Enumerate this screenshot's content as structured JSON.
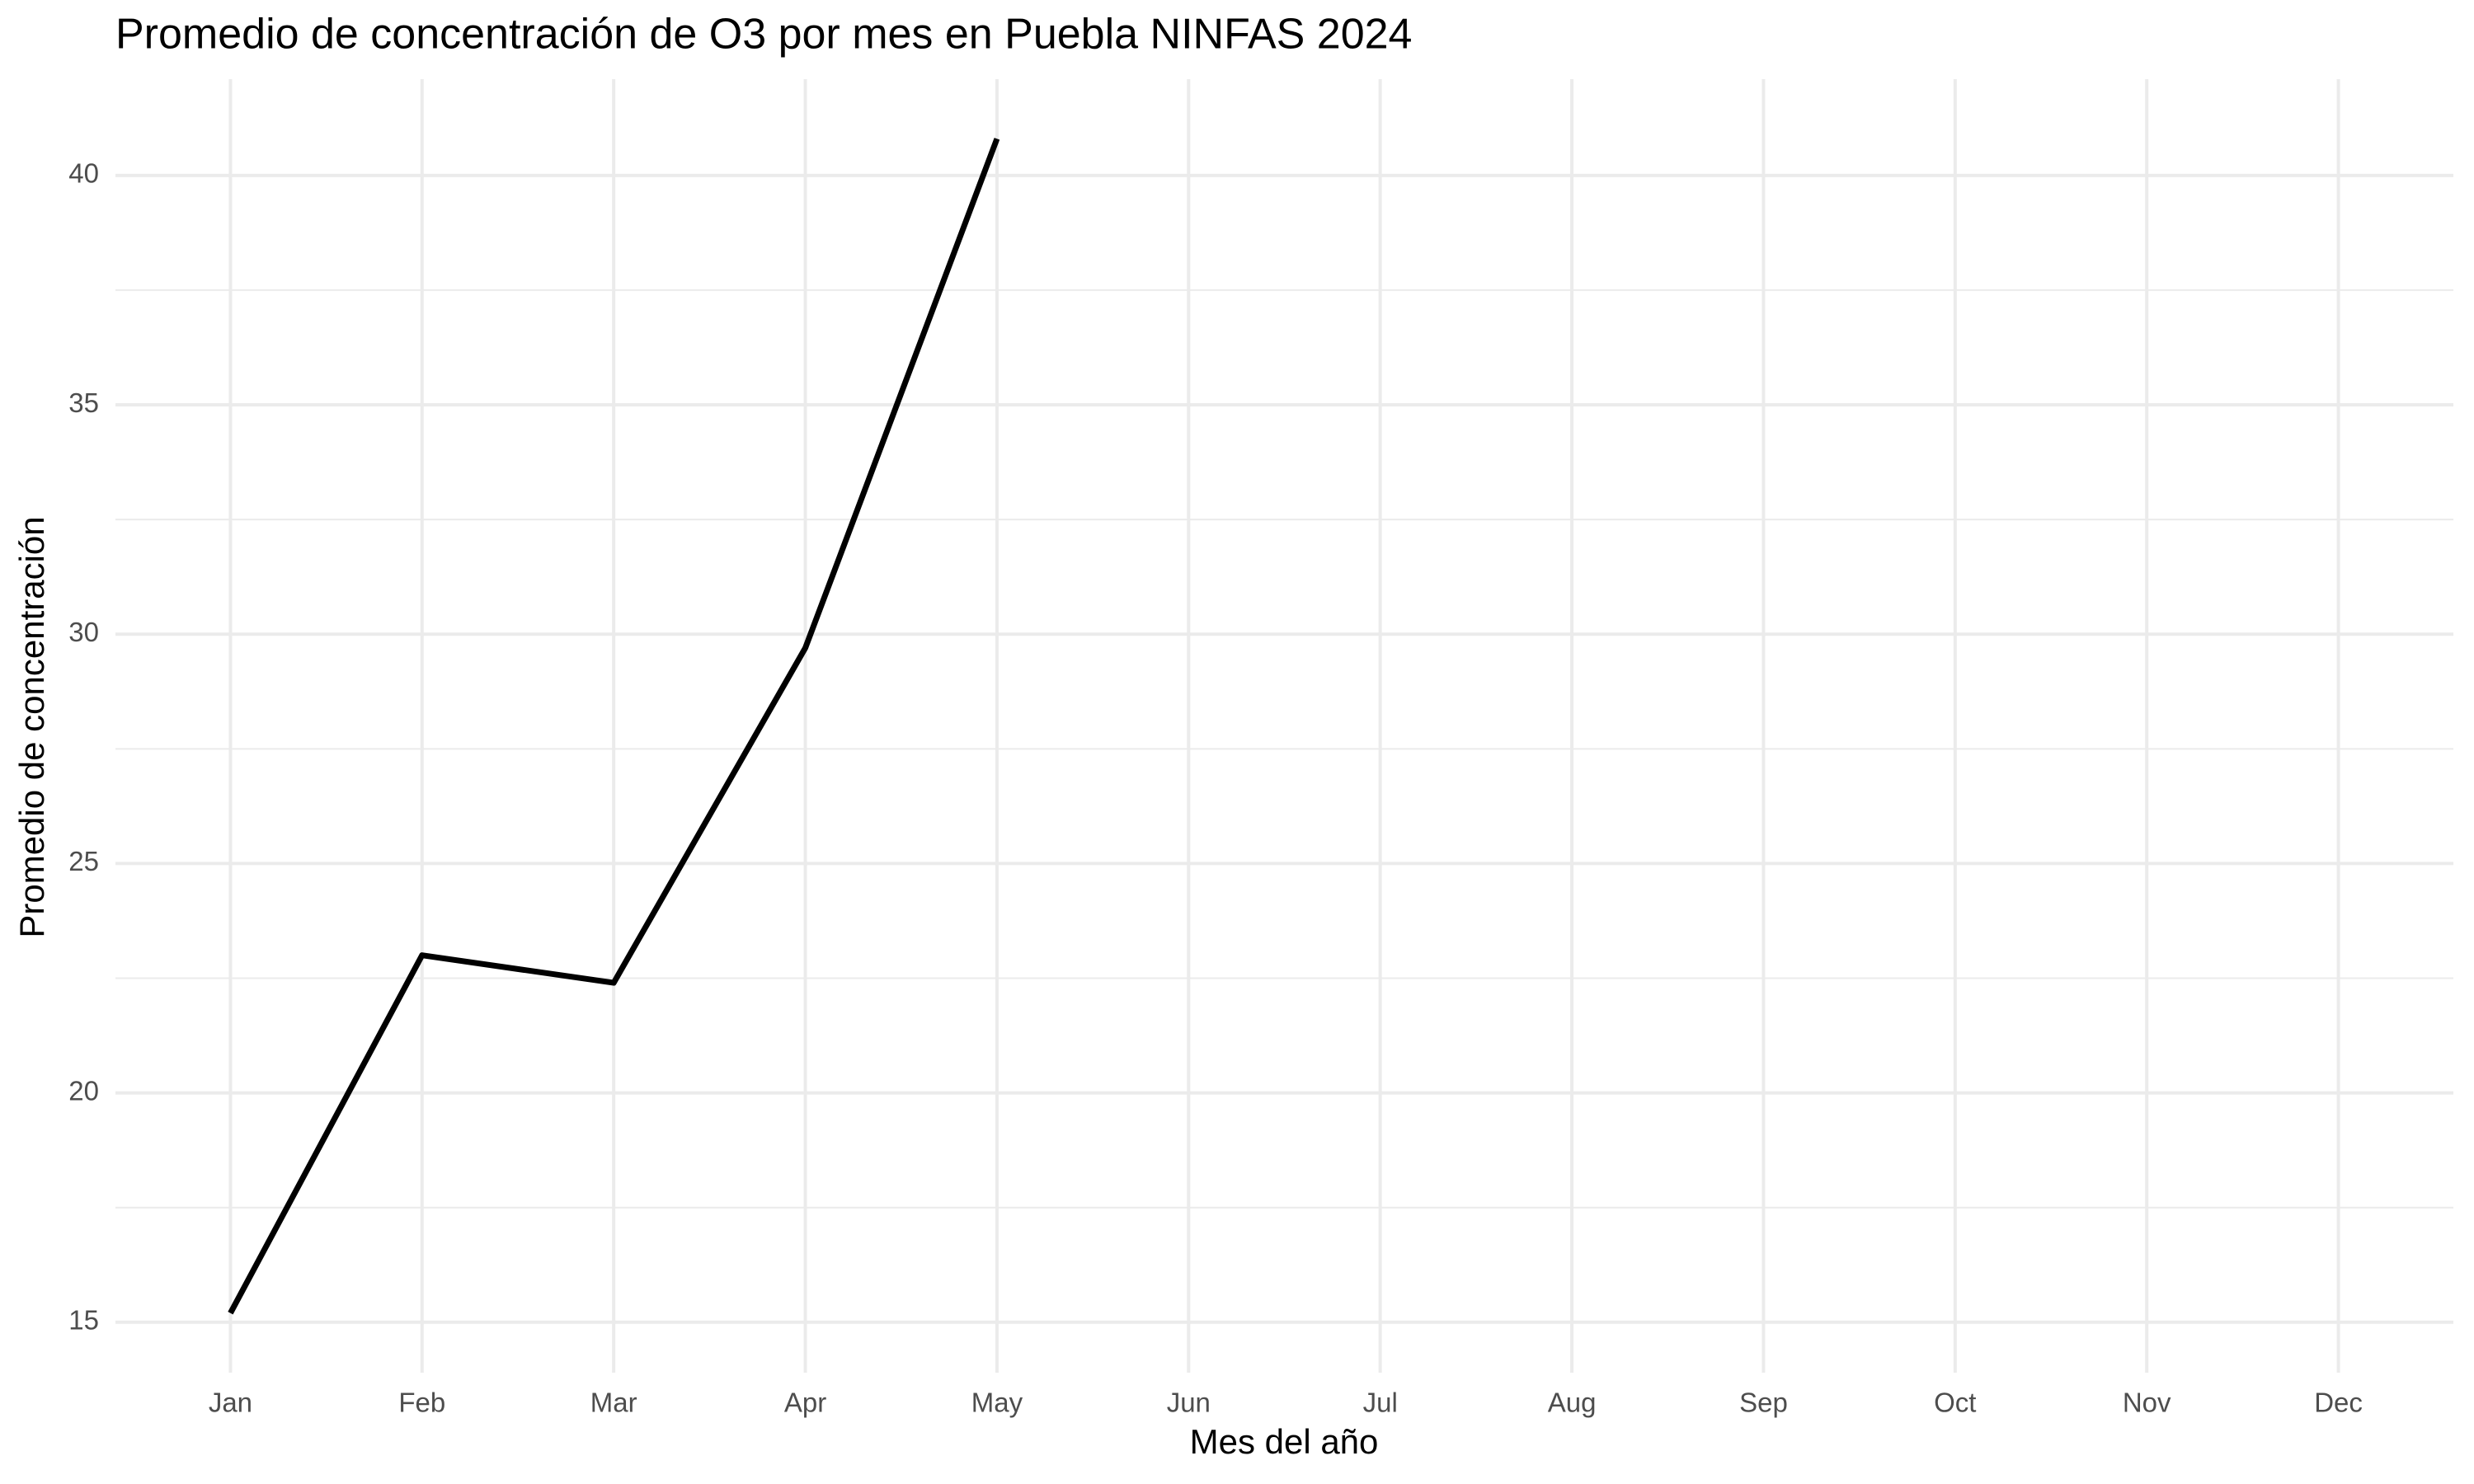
{
  "chart_data": {
    "type": "line",
    "title": "Promedio de concentración de O3 por mes en Puebla NINFAS 2024",
    "x_label": "Mes del año",
    "y_label": "Promedio de concentración",
    "categories": [
      "Jan",
      "Feb",
      "Mar",
      "Apr",
      "May",
      "Jun",
      "Jul",
      "Aug",
      "Sep",
      "Oct",
      "Nov",
      "Dec"
    ],
    "series": [
      {
        "name": "O3",
        "color": "#000000",
        "values": [
          15.2,
          23.0,
          22.4,
          29.7,
          40.8,
          null,
          null,
          null,
          null,
          null,
          null,
          null
        ]
      }
    ],
    "ylim": [
      13.9,
      42.1
    ],
    "yticks": [
      15,
      20,
      25,
      30,
      35,
      40
    ],
    "grid": true
  }
}
